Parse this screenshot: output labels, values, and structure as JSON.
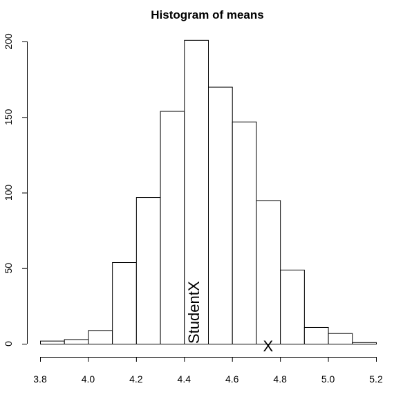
{
  "chart_data": {
    "type": "bar",
    "title": "Histogram of means",
    "xlabel": "",
    "ylabel": "",
    "bin_edges": [
      3.8,
      3.9,
      4.0,
      4.1,
      4.2,
      4.3,
      4.4,
      4.5,
      4.6,
      4.7,
      4.8,
      4.9,
      5.0,
      5.1,
      5.2
    ],
    "counts": [
      2,
      3,
      9,
      54,
      97,
      154,
      201,
      170,
      147,
      95,
      49,
      11,
      7,
      1
    ],
    "xlim": [
      3.8,
      5.2
    ],
    "ylim": [
      0,
      200
    ],
    "x_ticks": [
      "3.8",
      "4.0",
      "4.2",
      "4.4",
      "4.6",
      "4.8",
      "5.0",
      "5.2"
    ],
    "y_ticks": [
      "0",
      "50",
      "100",
      "150",
      "200"
    ],
    "annotations": [
      {
        "text": "StudentX",
        "x": 4.44,
        "y": 0,
        "rotation": "vertical"
      },
      {
        "text": "X",
        "x": 4.75,
        "y": 0,
        "rotation": "none"
      }
    ],
    "grid": false,
    "legend": "none"
  }
}
